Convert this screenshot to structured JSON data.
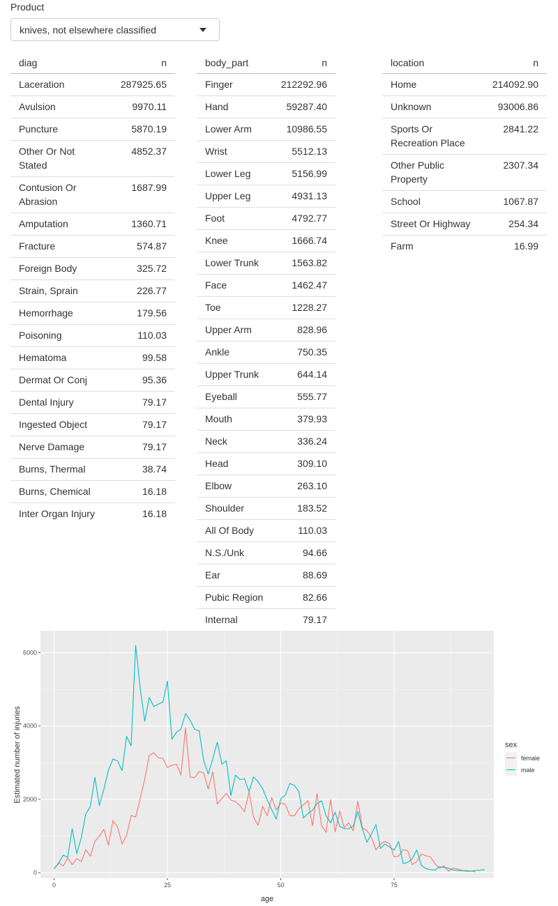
{
  "product": {
    "label": "Product",
    "selected": "knives, not elsewhere classified"
  },
  "tables": {
    "diag": {
      "headers": [
        "diag",
        "n"
      ],
      "rows": [
        [
          "Laceration",
          "287925.65"
        ],
        [
          "Avulsion",
          "9970.11"
        ],
        [
          "Puncture",
          "5870.19"
        ],
        [
          "Other Or Not Stated",
          "4852.37"
        ],
        [
          "Contusion Or Abrasion",
          "1687.99"
        ],
        [
          "Amputation",
          "1360.71"
        ],
        [
          "Fracture",
          "574.87"
        ],
        [
          "Foreign Body",
          "325.72"
        ],
        [
          "Strain, Sprain",
          "226.77"
        ],
        [
          "Hemorrhage",
          "179.56"
        ],
        [
          "Poisoning",
          "110.03"
        ],
        [
          "Hematoma",
          "99.58"
        ],
        [
          "Dermat Or Conj",
          "95.36"
        ],
        [
          "Dental Injury",
          "79.17"
        ],
        [
          "Ingested Object",
          "79.17"
        ],
        [
          "Nerve Damage",
          "79.17"
        ],
        [
          "Burns, Thermal",
          "38.74"
        ],
        [
          "Burns, Chemical",
          "16.18"
        ],
        [
          "Inter Organ Injury",
          "16.18"
        ]
      ]
    },
    "body_part": {
      "headers": [
        "body_part",
        "n"
      ],
      "rows": [
        [
          "Finger",
          "212292.96"
        ],
        [
          "Hand",
          "59287.40"
        ],
        [
          "Lower Arm",
          "10986.55"
        ],
        [
          "Wrist",
          "5512.13"
        ],
        [
          "Lower Leg",
          "5156.99"
        ],
        [
          "Upper Leg",
          "4931.13"
        ],
        [
          "Foot",
          "4792.77"
        ],
        [
          "Knee",
          "1666.74"
        ],
        [
          "Lower Trunk",
          "1563.82"
        ],
        [
          "Face",
          "1462.47"
        ],
        [
          "Toe",
          "1228.27"
        ],
        [
          "Upper Arm",
          "828.96"
        ],
        [
          "Ankle",
          "750.35"
        ],
        [
          "Upper Trunk",
          "644.14"
        ],
        [
          "Eyeball",
          "555.77"
        ],
        [
          "Mouth",
          "379.93"
        ],
        [
          "Neck",
          "336.24"
        ],
        [
          "Head",
          "309.10"
        ],
        [
          "Elbow",
          "263.10"
        ],
        [
          "Shoulder",
          "183.52"
        ],
        [
          "All Of Body",
          "110.03"
        ],
        [
          "N.S./Unk",
          "94.66"
        ],
        [
          "Ear",
          "88.69"
        ],
        [
          "Pubic Region",
          "82.66"
        ],
        [
          "Internal",
          "79.17"
        ]
      ]
    },
    "location": {
      "headers": [
        "location",
        "n"
      ],
      "rows": [
        [
          "Home",
          "214092.90"
        ],
        [
          "Unknown",
          "93006.86"
        ],
        [
          "Sports Or Recreation Place",
          "2841.22"
        ],
        [
          "Other Public Property",
          "2307.34"
        ],
        [
          "School",
          "1067.87"
        ],
        [
          "Street Or Highway",
          "254.34"
        ],
        [
          "Farm",
          "16.99"
        ]
      ]
    }
  },
  "chart_data": {
    "type": "line",
    "xlabel": "age",
    "ylabel": "Estimated number of injuries",
    "xlim": [
      -3,
      97
    ],
    "ylim": [
      -150,
      6600
    ],
    "xticks": [
      0,
      25,
      50,
      75
    ],
    "yticks": [
      0,
      2000,
      4000,
      6000
    ],
    "grid": true,
    "background": "#EBEBEB",
    "legend": {
      "title": "sex",
      "position": "right"
    },
    "series": [
      {
        "name": "female",
        "color": "#F8766D",
        "x": [
          0,
          1,
          2,
          3,
          4,
          5,
          6,
          7,
          8,
          9,
          10,
          11,
          12,
          13,
          14,
          15,
          16,
          17,
          18,
          19,
          20,
          21,
          22,
          23,
          24,
          25,
          26,
          27,
          28,
          29,
          30,
          31,
          32,
          33,
          34,
          35,
          36,
          37,
          38,
          39,
          40,
          41,
          42,
          43,
          44,
          45,
          46,
          47,
          48,
          49,
          50,
          51,
          52,
          53,
          54,
          55,
          56,
          57,
          58,
          59,
          60,
          61,
          62,
          63,
          64,
          65,
          66,
          67,
          68,
          69,
          70,
          71,
          72,
          73,
          74,
          75,
          76,
          77,
          78,
          79,
          80,
          81,
          82,
          83,
          84,
          85,
          86,
          87,
          88,
          89,
          90,
          91,
          92,
          93
        ],
        "y": [
          100,
          270,
          180,
          400,
          220,
          380,
          300,
          620,
          450,
          850,
          1000,
          1180,
          750,
          1420,
          1250,
          780,
          1020,
          1560,
          1520,
          2020,
          2550,
          3200,
          3270,
          3130,
          3120,
          2870,
          2930,
          2960,
          2660,
          3950,
          2610,
          2590,
          2760,
          2720,
          2280,
          2750,
          1870,
          2020,
          2160,
          1980,
          1940,
          1830,
          1660,
          2200,
          1520,
          1290,
          1810,
          1550,
          2050,
          1710,
          1900,
          1860,
          1560,
          1550,
          1740,
          1850,
          1960,
          1280,
          2160,
          1290,
          1100,
          1990,
          1110,
          1680,
          1230,
          1360,
          1140,
          1950,
          1220,
          1150,
          960,
          620,
          780,
          850,
          790,
          430,
          450,
          630,
          600,
          220,
          300,
          510,
          460,
          430,
          250,
          120,
          180,
          40,
          120,
          100,
          60,
          30,
          40,
          20
        ]
      },
      {
        "name": "male",
        "color": "#00BFC4",
        "x": [
          0,
          1,
          2,
          3,
          4,
          5,
          6,
          7,
          8,
          9,
          10,
          11,
          12,
          13,
          14,
          15,
          16,
          17,
          18,
          19,
          20,
          21,
          22,
          23,
          24,
          25,
          26,
          27,
          28,
          29,
          30,
          31,
          32,
          33,
          34,
          35,
          36,
          37,
          38,
          39,
          40,
          41,
          42,
          43,
          44,
          45,
          46,
          47,
          48,
          49,
          50,
          51,
          52,
          53,
          54,
          55,
          56,
          57,
          58,
          59,
          60,
          61,
          62,
          63,
          64,
          65,
          66,
          67,
          68,
          69,
          70,
          71,
          72,
          73,
          74,
          75,
          76,
          77,
          78,
          79,
          80,
          81,
          82,
          83,
          84,
          85,
          86,
          87,
          88,
          89,
          90,
          91,
          92,
          93,
          94,
          95
        ],
        "y": [
          110,
          250,
          480,
          420,
          1200,
          520,
          950,
          1600,
          1800,
          2600,
          1830,
          2280,
          2800,
          3100,
          3050,
          2780,
          3720,
          3460,
          6200,
          5030,
          4130,
          4780,
          4530,
          4600,
          4650,
          5220,
          3640,
          3830,
          3920,
          4340,
          4160,
          3910,
          3870,
          3060,
          2690,
          3100,
          3560,
          2960,
          3050,
          2100,
          2660,
          2540,
          2560,
          2210,
          2610,
          2480,
          2290,
          1990,
          1720,
          1460,
          2020,
          2110,
          2430,
          2380,
          2210,
          1490,
          1610,
          1700,
          1880,
          1960,
          1550,
          1360,
          1650,
          1260,
          1200,
          1200,
          1270,
          1670,
          1200,
          830,
          1050,
          1310,
          660,
          780,
          700,
          610,
          850,
          250,
          280,
          380,
          620,
          200,
          110,
          80,
          70,
          160,
          140,
          120,
          70,
          60,
          50,
          60,
          40,
          60,
          70,
          80
        ]
      }
    ]
  }
}
